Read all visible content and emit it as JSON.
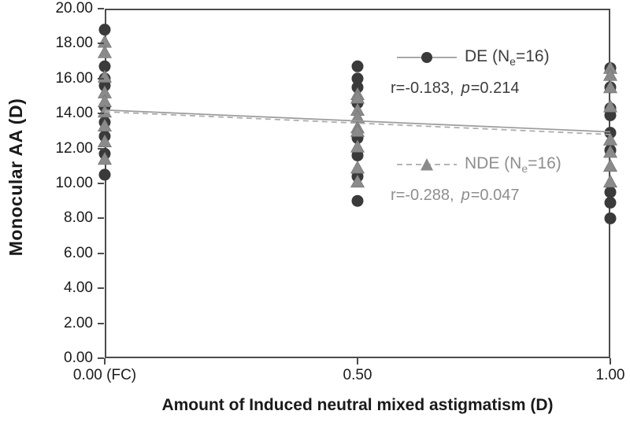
{
  "figure": {
    "background": "#ffffff",
    "axis_color": "#4c4c4c",
    "tick_text_color": "#1a1a1a"
  },
  "chart_data": {
    "type": "scatter",
    "title": "",
    "xlabel": "Amount of Induced neutral mixed astigmatism (D)",
    "ylabel": "Monocular AA (D)",
    "xlim": [
      0,
      1
    ],
    "ylim": [
      0,
      20
    ],
    "grid": false,
    "legend_position": "inside upper-right",
    "x_ticks": [
      {
        "v": 0.0,
        "label": "0.00 (FC)"
      },
      {
        "v": 0.5,
        "label": "0.50"
      },
      {
        "v": 1.0,
        "label": "1.00"
      }
    ],
    "y_ticks": [
      {
        "v": 20,
        "label": "20.00"
      },
      {
        "v": 18,
        "label": "18.00"
      },
      {
        "v": 16,
        "label": "16.00"
      },
      {
        "v": 14,
        "label": "14.00"
      },
      {
        "v": 12,
        "label": "12.00"
      },
      {
        "v": 10,
        "label": "10.00"
      },
      {
        "v": 8,
        "label": "8.00"
      },
      {
        "v": 6,
        "label": "6.00"
      },
      {
        "v": 4,
        "label": "4.00"
      },
      {
        "v": 2,
        "label": "2.00"
      },
      {
        "v": 0,
        "label": "0.00"
      }
    ],
    "series": [
      {
        "name": "DE",
        "marker": "circle",
        "marker_color": "#3a3a3a",
        "legend": {
          "prefix": "DE (N",
          "sub": "e",
          "suffix": "=16)"
        },
        "stats": {
          "r_text": "r=-0.183,",
          "p_label": "p",
          "p_value": "=0.214"
        },
        "trendline": {
          "style": "solid",
          "color": "#9c9c9c",
          "x": [
            0,
            1
          ],
          "y": [
            14.2,
            12.95
          ]
        },
        "points": [
          {
            "x": 0.0,
            "y": 18.8
          },
          {
            "x": 0.0,
            "y": 16.7
          },
          {
            "x": 0.0,
            "y": 16.0
          },
          {
            "x": 0.0,
            "y": 15.6
          },
          {
            "x": 0.0,
            "y": 14.4
          },
          {
            "x": 0.0,
            "y": 13.5
          },
          {
            "x": 0.0,
            "y": 12.7
          },
          {
            "x": 0.0,
            "y": 11.7
          },
          {
            "x": 0.0,
            "y": 10.5
          },
          {
            "x": 0.5,
            "y": 16.7
          },
          {
            "x": 0.5,
            "y": 16.0
          },
          {
            "x": 0.5,
            "y": 15.5
          },
          {
            "x": 0.5,
            "y": 14.6
          },
          {
            "x": 0.5,
            "y": 12.6
          },
          {
            "x": 0.5,
            "y": 11.6
          },
          {
            "x": 0.5,
            "y": 10.4
          },
          {
            "x": 0.5,
            "y": 9.0
          },
          {
            "x": 1.0,
            "y": 16.6
          },
          {
            "x": 1.0,
            "y": 15.5
          },
          {
            "x": 1.0,
            "y": 14.3
          },
          {
            "x": 1.0,
            "y": 13.9
          },
          {
            "x": 1.0,
            "y": 12.9
          },
          {
            "x": 1.0,
            "y": 11.9
          },
          {
            "x": 1.0,
            "y": 9.5
          },
          {
            "x": 1.0,
            "y": 8.9
          },
          {
            "x": 1.0,
            "y": 8.0
          }
        ]
      },
      {
        "name": "NDE",
        "marker": "triangle",
        "marker_color": "#8a8a8a",
        "legend": {
          "prefix": "NDE (N",
          "sub": "e",
          "suffix": "=16)"
        },
        "stats": {
          "r_text": "r=-0.288,",
          "p_label": "p",
          "p_value": "=0.047"
        },
        "trendline": {
          "style": "dashed",
          "color": "#ababab",
          "x": [
            0,
            1
          ],
          "y": [
            14.1,
            12.8
          ]
        },
        "points": [
          {
            "x": 0.0,
            "y": 18.1
          },
          {
            "x": 0.0,
            "y": 17.5
          },
          {
            "x": 0.0,
            "y": 16.1
          },
          {
            "x": 0.0,
            "y": 15.2
          },
          {
            "x": 0.0,
            "y": 14.7
          },
          {
            "x": 0.0,
            "y": 14.1
          },
          {
            "x": 0.0,
            "y": 13.3
          },
          {
            "x": 0.0,
            "y": 12.4
          },
          {
            "x": 0.0,
            "y": 11.4
          },
          {
            "x": 0.5,
            "y": 15.1
          },
          {
            "x": 0.5,
            "y": 14.9
          },
          {
            "x": 0.5,
            "y": 14.2
          },
          {
            "x": 0.5,
            "y": 13.8
          },
          {
            "x": 0.5,
            "y": 13.2
          },
          {
            "x": 0.5,
            "y": 13.0
          },
          {
            "x": 0.5,
            "y": 12.1
          },
          {
            "x": 0.5,
            "y": 10.9
          },
          {
            "x": 0.5,
            "y": 10.1
          },
          {
            "x": 1.0,
            "y": 16.6
          },
          {
            "x": 1.0,
            "y": 16.2
          },
          {
            "x": 1.0,
            "y": 15.5
          },
          {
            "x": 1.0,
            "y": 14.4
          },
          {
            "x": 1.0,
            "y": 12.5
          },
          {
            "x": 1.0,
            "y": 11.8
          },
          {
            "x": 1.0,
            "y": 11.0
          },
          {
            "x": 1.0,
            "y": 10.1
          }
        ]
      }
    ]
  }
}
